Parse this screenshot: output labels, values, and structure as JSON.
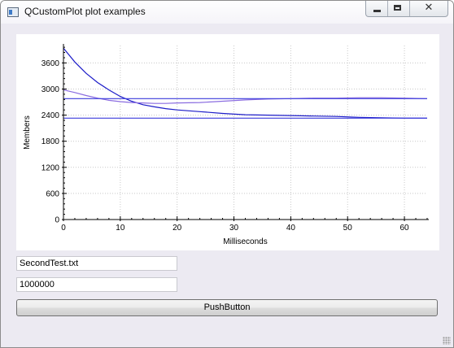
{
  "window": {
    "title": "QCustomPlot plot examples",
    "icon": "app-window-icon",
    "controls": {
      "minimize": "minimize-icon",
      "maximize": "maximize-icon",
      "close_label": "✕"
    }
  },
  "colors": {
    "series_dark": "#1c1cc8",
    "series_light": "#8a6ce0",
    "hline": "#3b3bdc",
    "grid": "#c8c8c8"
  },
  "chart_data": {
    "type": "line",
    "title": "",
    "xlabel": "Milliseconds",
    "ylabel": "Members",
    "xlim": [
      0,
      64
    ],
    "ylim": [
      0,
      4000
    ],
    "x_ticks": [
      0,
      10,
      20,
      30,
      40,
      50,
      60
    ],
    "y_ticks": [
      0,
      600,
      1200,
      1800,
      2400,
      3000,
      3600
    ],
    "grid": true,
    "series": [
      {
        "color": "#1c1cc8",
        "x": [
          0,
          2,
          4,
          6,
          8,
          10,
          12,
          14,
          16,
          18,
          20,
          24,
          28,
          32,
          36,
          40,
          44,
          48,
          52,
          56,
          60,
          64
        ],
        "y": [
          3940,
          3620,
          3360,
          3150,
          2980,
          2830,
          2720,
          2640,
          2590,
          2550,
          2520,
          2480,
          2440,
          2410,
          2400,
          2390,
          2380,
          2370,
          2350,
          2340,
          2330,
          2330
        ]
      },
      {
        "color": "#8a6ce0",
        "x": [
          0,
          2,
          4,
          6,
          8,
          10,
          12,
          14,
          16,
          18,
          20,
          24,
          28,
          32,
          36,
          40,
          44,
          48,
          52,
          56,
          60,
          64
        ],
        "y": [
          2980,
          2920,
          2850,
          2790,
          2740,
          2710,
          2690,
          2680,
          2670,
          2670,
          2680,
          2690,
          2720,
          2750,
          2770,
          2780,
          2790,
          2790,
          2800,
          2800,
          2790,
          2780
        ]
      },
      {
        "color": "#3b3bdc",
        "x": [
          0,
          64
        ],
        "y": [
          2780,
          2780
        ]
      },
      {
        "color": "#3b3bdc",
        "x": [
          0,
          64
        ],
        "y": [
          2330,
          2330
        ]
      }
    ]
  },
  "inputs": {
    "file_value": "SecondTest.txt",
    "count_value": "1000000"
  },
  "button": {
    "label": "PushButton"
  }
}
